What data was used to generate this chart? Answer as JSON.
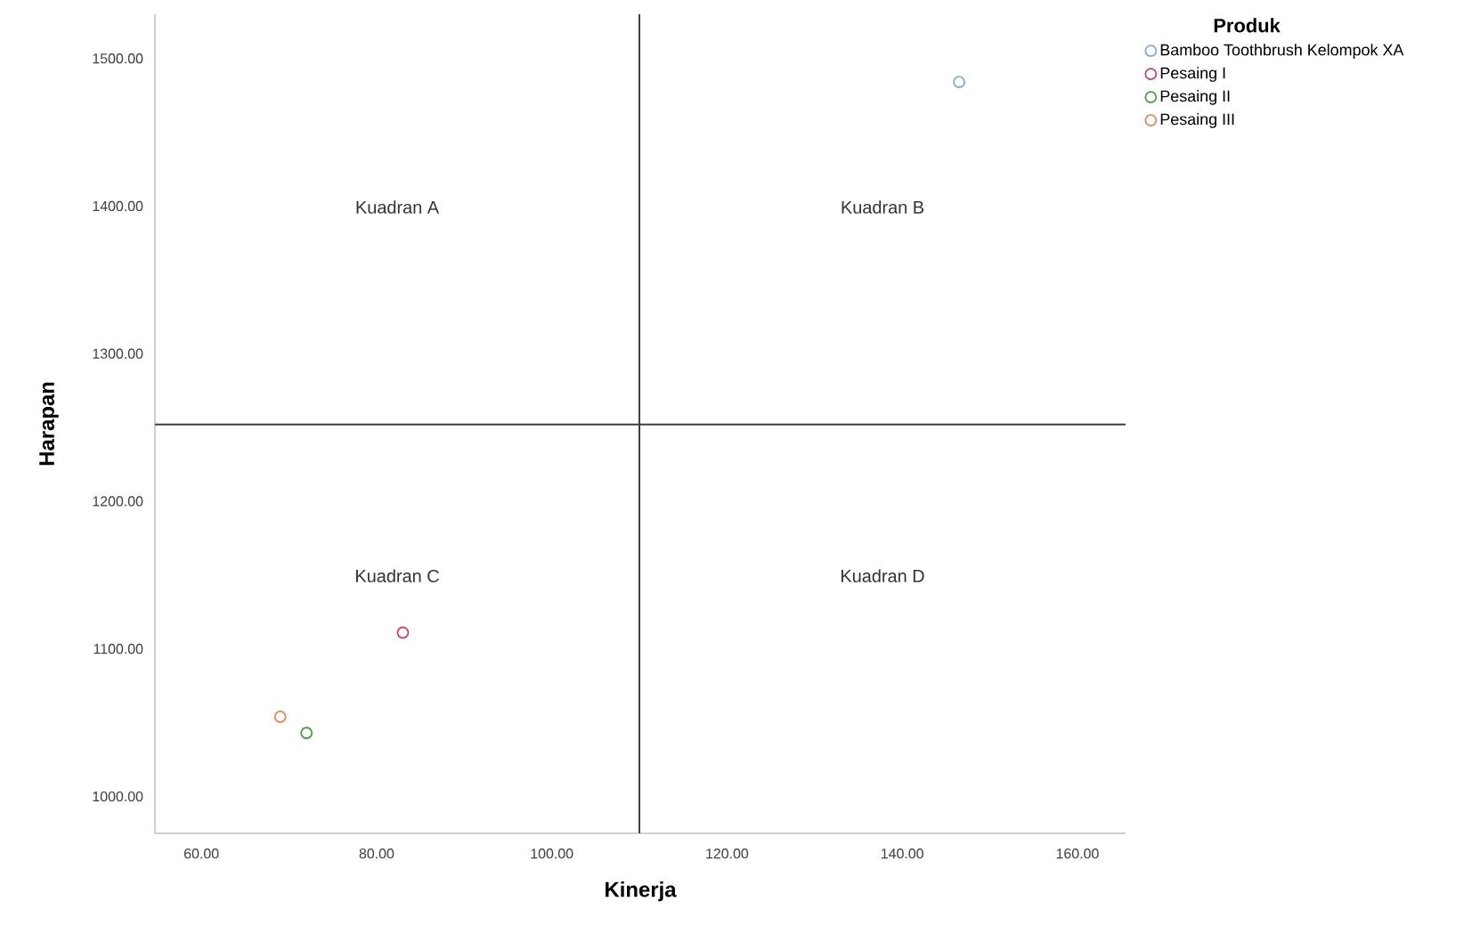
{
  "chart_data": {
    "type": "scatter",
    "xlabel": "Kinerja",
    "ylabel": "Harapan",
    "legend_title": "Produk",
    "xlim": [
      54.7,
      165.5
    ],
    "ylim": [
      975,
      1530
    ],
    "xticks": [
      {
        "value": 60,
        "label": "60.00"
      },
      {
        "value": 80,
        "label": "80.00"
      },
      {
        "value": 100,
        "label": "100.00"
      },
      {
        "value": 120,
        "label": "120.00"
      },
      {
        "value": 140,
        "label": "140.00"
      },
      {
        "value": 160,
        "label": "160.00"
      }
    ],
    "yticks": [
      {
        "value": 1000,
        "label": "1000.00"
      },
      {
        "value": 1100,
        "label": "1100.00"
      },
      {
        "value": 1200,
        "label": "1200.00"
      },
      {
        "value": 1300,
        "label": "1300.00"
      },
      {
        "value": 1400,
        "label": "1400.00"
      },
      {
        "value": 1500,
        "label": "1500.00"
      }
    ],
    "series": [
      {
        "name": "Bamboo Toothbrush Kelompok XA",
        "color": "#7fa8dc",
        "x": [
          146.5
        ],
        "values": [
          1484
        ]
      },
      {
        "name": "Pesaing I",
        "color": "#c9406b",
        "x": [
          83
        ],
        "values": [
          1111
        ]
      },
      {
        "name": "Pesaing II",
        "color": "#4a9e4a",
        "x": [
          72
        ],
        "values": [
          1043
        ]
      },
      {
        "name": "Pesaing III",
        "color": "#e8875a",
        "x": [
          69
        ],
        "values": [
          1054
        ]
      }
    ],
    "ref_lines": [
      {
        "axis": "x",
        "value": 110,
        "color": "#404040"
      },
      {
        "axis": "y",
        "value": 1252,
        "color": "#404040"
      }
    ],
    "annotations": [
      "Kuadran A",
      "Kuadran B",
      "Kuadran C",
      "Kuadran D"
    ],
    "marker": "circle",
    "legend": "top right",
    "grid": false
  }
}
